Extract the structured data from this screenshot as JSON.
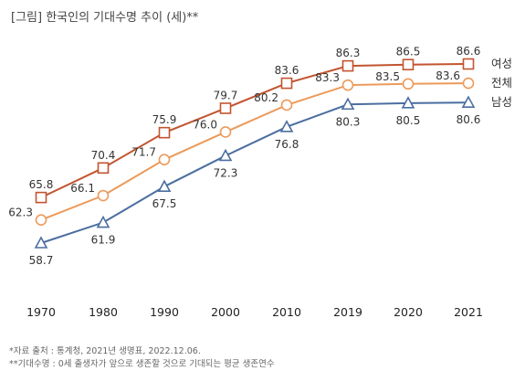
{
  "title": "[그림] 한국인의 기대수명 추이 (세)**",
  "chart_data": {
    "type": "line",
    "x": [
      "1970",
      "1980",
      "1990",
      "2000",
      "2010",
      "2019",
      "2020",
      "2021"
    ],
    "ylim": [
      55,
      90
    ],
    "grid": false,
    "legend": "labels at right end of each line",
    "series": [
      {
        "name": "여성",
        "marker": "square",
        "color": "#c2542f",
        "values": [
          65.8,
          70.4,
          75.9,
          79.7,
          83.6,
          86.3,
          86.5,
          86.6
        ]
      },
      {
        "name": "전체",
        "marker": "circle",
        "color": "#ec9a5a",
        "values": [
          62.3,
          66.1,
          71.7,
          76.0,
          80.2,
          83.3,
          83.5,
          83.6
        ]
      },
      {
        "name": "남성",
        "marker": "triangle",
        "color": "#4b6ea0",
        "values": [
          58.7,
          61.9,
          67.5,
          72.3,
          76.8,
          80.3,
          80.5,
          80.6
        ]
      }
    ]
  },
  "footnotes": [
    "*자료 출처 : 통계청, 2021년 생명표, 2022.12.06.",
    "**기대수명 : 0세 출생자가 앞으로 생존할 것으로 기대되는 평균 생존연수"
  ]
}
